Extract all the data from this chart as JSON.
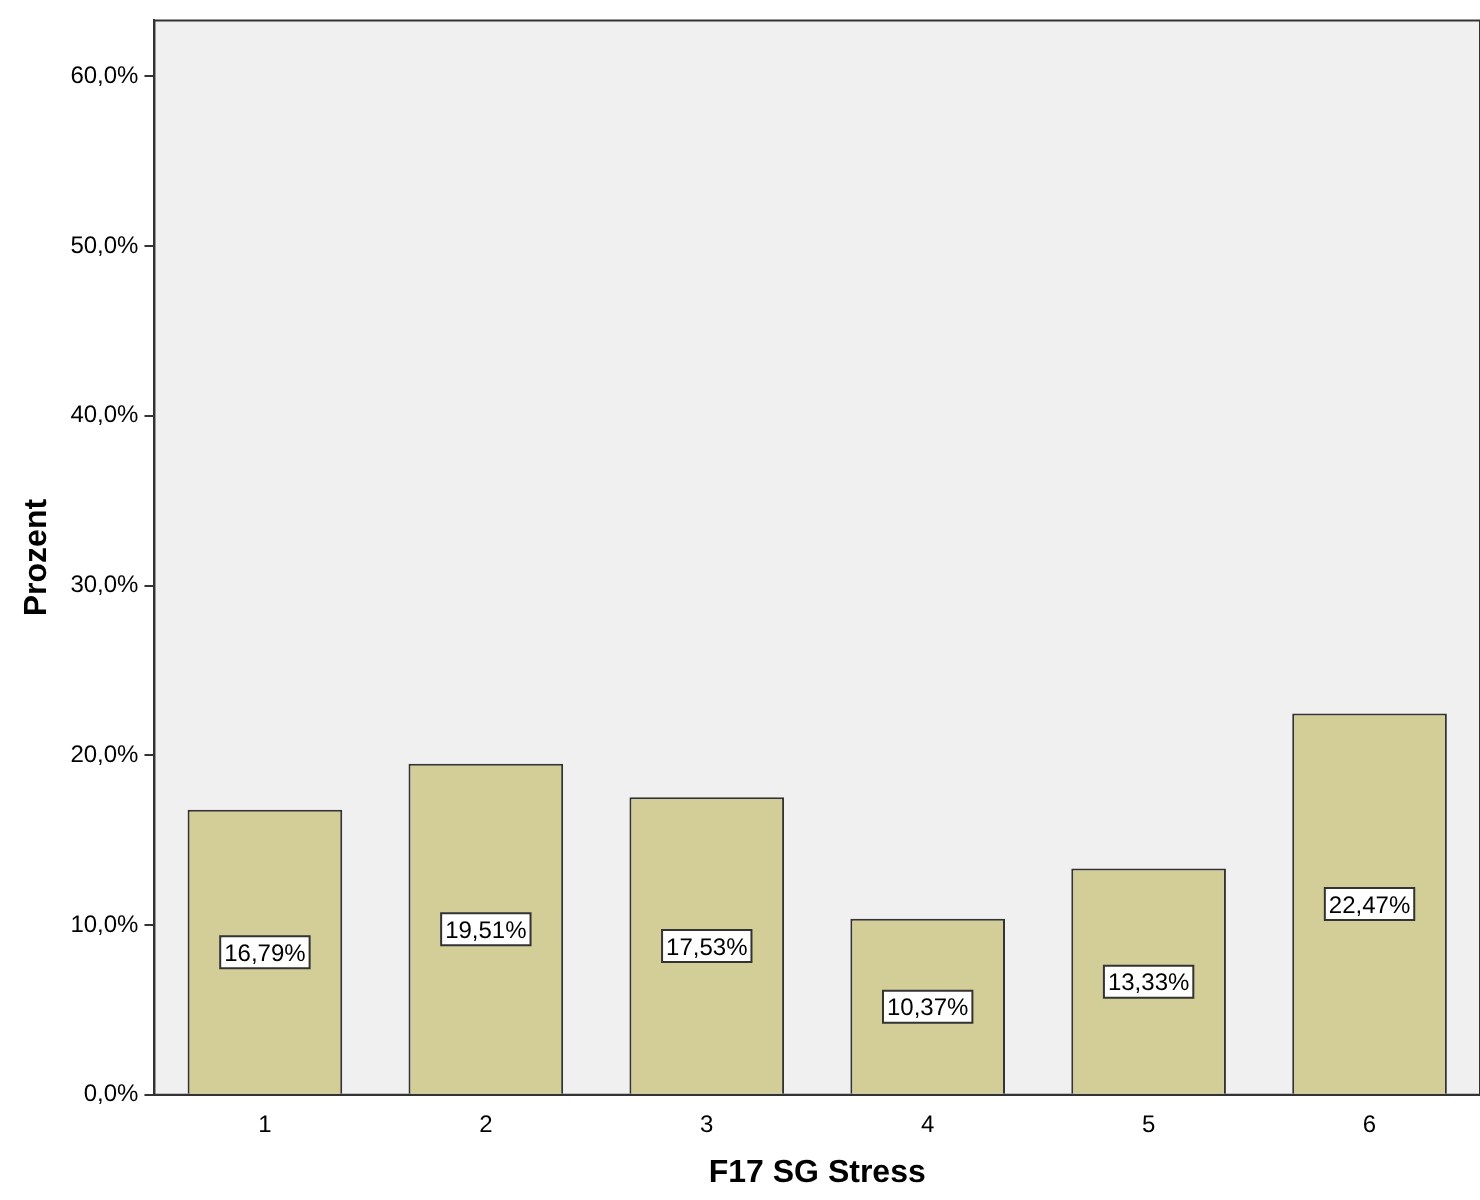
{
  "chart_data": {
    "type": "bar",
    "xlabel": "F17 SG Stress",
    "ylabel": "Prozent",
    "categories": [
      "1",
      "2",
      "3",
      "4",
      "5",
      "6"
    ],
    "values": [
      16.79,
      19.51,
      17.53,
      10.37,
      13.33,
      22.47
    ],
    "value_labels": [
      "16,79%",
      "19,51%",
      "17,53%",
      "10,37%",
      "13,33%",
      "22,47%"
    ],
    "color": "#d3ce97",
    "ylim": [
      0,
      63.3
    ],
    "yticks": [
      {
        "value": 0,
        "label": "0,0%"
      },
      {
        "value": 10,
        "label": "10,0%"
      },
      {
        "value": 20,
        "label": "20,0%"
      },
      {
        "value": 30,
        "label": "30,0%"
      },
      {
        "value": 40,
        "label": "40,0%"
      },
      {
        "value": 50,
        "label": "50,0%"
      },
      {
        "value": 60,
        "label": "60,0%"
      }
    ],
    "grid": false,
    "legend": false
  }
}
